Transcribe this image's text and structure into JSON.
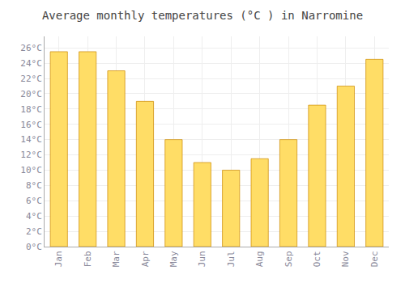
{
  "chart_data": {
    "type": "bar",
    "title": "Average monthly temperatures (°C ) in Narromine",
    "categories": [
      "Jan",
      "Feb",
      "Mar",
      "Apr",
      "May",
      "Jun",
      "Jul",
      "Aug",
      "Sep",
      "Oct",
      "Nov",
      "Dec"
    ],
    "values": [
      25.5,
      25.5,
      23.0,
      19.0,
      14.0,
      11.0,
      10.0,
      11.5,
      14.0,
      18.5,
      21.0,
      24.5
    ],
    "color": "#FFDD66",
    "ylim": [
      0,
      27.5
    ],
    "yticks": [
      {
        "value": 0,
        "label": "0°C"
      },
      {
        "value": 2,
        "label": "2°C"
      },
      {
        "value": 4,
        "label": "4°C"
      },
      {
        "value": 6,
        "label": "6°C"
      },
      {
        "value": 8,
        "label": "8°C"
      },
      {
        "value": 10,
        "label": "10°C"
      },
      {
        "value": 12,
        "label": "12°C"
      },
      {
        "value": 14,
        "label": "14°C"
      },
      {
        "value": 16,
        "label": "16°C"
      },
      {
        "value": 18,
        "label": "18°C"
      },
      {
        "value": 20,
        "label": "20°C"
      },
      {
        "value": 22,
        "label": "22°C"
      },
      {
        "value": 24,
        "label": "24°C"
      },
      {
        "value": 26,
        "label": "26°C"
      }
    ],
    "grid": true
  }
}
